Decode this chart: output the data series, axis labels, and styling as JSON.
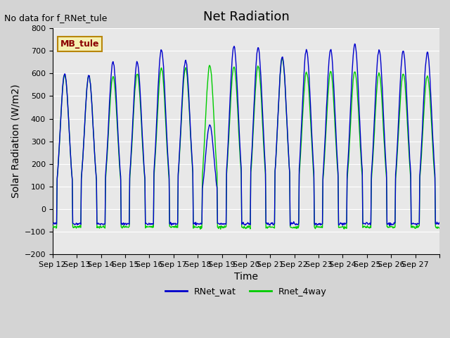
{
  "title": "Net Radiation",
  "xlabel": "Time",
  "ylabel": "Solar Radiation (W/m2)",
  "ylim": [
    -200,
    800
  ],
  "yticks": [
    -200,
    -100,
    0,
    100,
    200,
    300,
    400,
    500,
    600,
    700,
    800
  ],
  "no_data_text": "No data for f_RNet_tule",
  "station_label": "MB_tule",
  "legend_entries": [
    "RNet_wat",
    "Rnet_4way"
  ],
  "line_colors": [
    "#0000cc",
    "#00cc00"
  ],
  "background_color": "#e8e8e8",
  "grid_color": "#ffffff",
  "n_days": 16,
  "x_tick_labels": [
    "Sep 12",
    "Sep 13",
    "Sep 14",
    "Sep 15",
    "Sep 16",
    "Sep 17",
    "Sep 18",
    "Sep 19",
    "Sep 20",
    "Sep 21",
    "Sep 22",
    "Sep 23",
    "Sep 24",
    "Sep 25",
    "Sep 26",
    "Sep 27"
  ],
  "day_peaks_blue": [
    600,
    590,
    650,
    650,
    705,
    660,
    370,
    720,
    715,
    675,
    705,
    705,
    730,
    705,
    700,
    695
  ],
  "day_peaks_green": [
    595,
    590,
    585,
    600,
    625,
    625,
    635,
    630,
    635,
    665,
    605,
    610,
    610,
    600,
    600,
    590
  ],
  "night_val_blue": -65,
  "night_val_green": -80
}
